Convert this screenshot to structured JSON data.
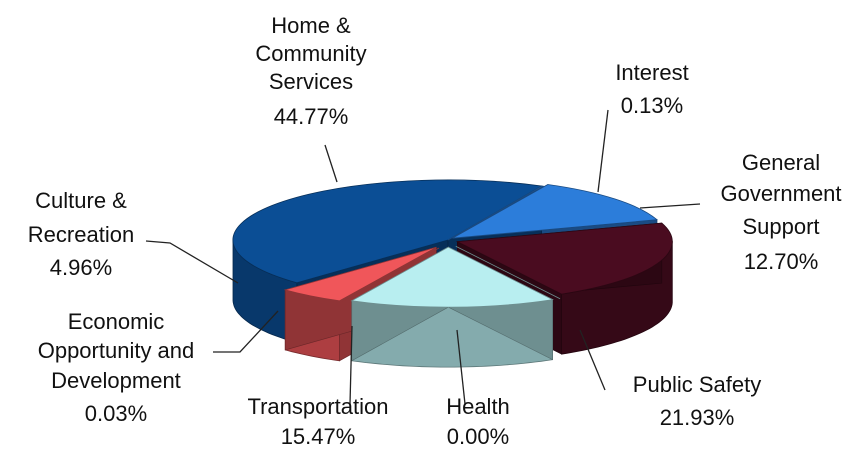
{
  "chart_data": {
    "type": "pie",
    "style": "3d-exploded",
    "slices": [
      {
        "label_lines": [
          "Home &",
          "Community",
          "Services"
        ],
        "value_text": "44.77%",
        "value": 44.77,
        "color": "#0B4E95"
      },
      {
        "label_lines": [
          "Interest"
        ],
        "value_text": "0.13%",
        "value": 0.13,
        "color": "#2C7DDA"
      },
      {
        "label_lines": [
          "General",
          "Government",
          "Support"
        ],
        "value_text": "12.70%",
        "value": 12.7,
        "color": "#2C7DDA"
      },
      {
        "label_lines": [
          "Public Safety"
        ],
        "value_text": "21.93%",
        "value": 21.93,
        "color": "#4A0C20"
      },
      {
        "label_lines": [
          "Health"
        ],
        "value_text": "0.00%",
        "value": 0.0,
        "color": "#B8EEF0"
      },
      {
        "label_lines": [
          "Transportation"
        ],
        "value_text": "15.47%",
        "value": 15.47,
        "color": "#B8EEF0"
      },
      {
        "label_lines": [
          "Economic",
          "Opportunity and",
          "Development"
        ],
        "value_text": "0.03%",
        "value": 0.03,
        "color": "#F0565A"
      },
      {
        "label_lines": [
          "Culture &",
          "Recreation"
        ],
        "value_text": "4.96%",
        "value": 4.96,
        "color": "#F0565A"
      }
    ]
  }
}
